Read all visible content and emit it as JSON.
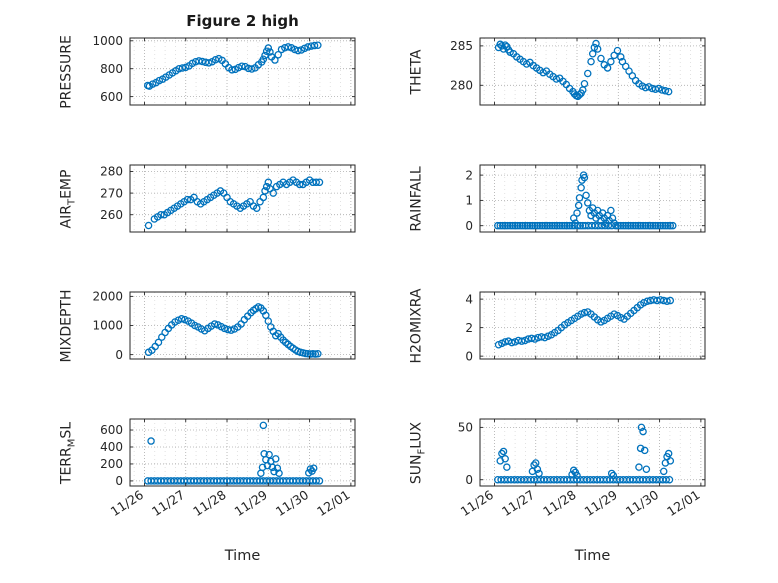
{
  "title": "Figure 2 high",
  "xlabel": "Time",
  "colors": {
    "marker": "#0072BD",
    "axis": "#262626",
    "grid": "#ababab",
    "minor_grid": "#d6d6d6",
    "background": "#ffffff"
  },
  "time_axis": {
    "xlim": [
      -0.35,
      5.1
    ],
    "xticks": [
      0,
      1,
      2,
      3,
      4,
      5
    ],
    "xtick_labels": [
      "11/26",
      "11/27",
      "11/28",
      "11/29",
      "11/30",
      "12/01"
    ]
  },
  "chart_data": [
    {
      "type": "scatter",
      "name": "PRESSURE",
      "ylabel": {
        "pre": "PRESSURE",
        "sub": "",
        "post": ""
      },
      "yticks": [
        600,
        800,
        1000
      ],
      "ylim": [
        540,
        1020
      ],
      "show_x_labels": false,
      "x": [
        0.08,
        0.12,
        0.2,
        0.28,
        0.36,
        0.44,
        0.52,
        0.6,
        0.68,
        0.76,
        0.84,
        0.92,
        1.0,
        1.08,
        1.16,
        1.24,
        1.32,
        1.4,
        1.48,
        1.56,
        1.64,
        1.72,
        1.8,
        1.88,
        1.96,
        2.04,
        2.12,
        2.2,
        2.28,
        2.36,
        2.44,
        2.52,
        2.6,
        2.68,
        2.76,
        2.84,
        2.88,
        2.92,
        2.96,
        3.0,
        3.04,
        3.08,
        3.16,
        3.24,
        3.32,
        3.4,
        3.48,
        3.56,
        3.64,
        3.72,
        3.8,
        3.88,
        3.96,
        4.04,
        4.12,
        4.2
      ],
      "y": [
        680,
        675,
        690,
        700,
        715,
        725,
        740,
        755,
        770,
        785,
        800,
        805,
        810,
        820,
        838,
        850,
        856,
        852,
        846,
        842,
        850,
        864,
        872,
        860,
        835,
        808,
        792,
        795,
        808,
        818,
        815,
        802,
        798,
        806,
        828,
        848,
        868,
        895,
        925,
        948,
        920,
        885,
        862,
        900,
        938,
        950,
        956,
        950,
        938,
        930,
        934,
        946,
        956,
        962,
        966,
        968
      ]
    },
    {
      "type": "scatter",
      "name": "THETA",
      "ylabel": {
        "pre": "THETA",
        "sub": "",
        "post": ""
      },
      "yticks": [
        280,
        285
      ],
      "ylim": [
        277.5,
        286
      ],
      "show_x_labels": false,
      "x": [
        0.1,
        0.14,
        0.18,
        0.22,
        0.26,
        0.3,
        0.34,
        0.38,
        0.46,
        0.54,
        0.62,
        0.7,
        0.78,
        0.86,
        0.94,
        1.02,
        1.1,
        1.18,
        1.26,
        1.34,
        1.42,
        1.5,
        1.58,
        1.66,
        1.74,
        1.82,
        1.9,
        1.94,
        1.98,
        2.02,
        2.06,
        2.1,
        2.14,
        2.18,
        2.26,
        2.34,
        2.38,
        2.42,
        2.46,
        2.5,
        2.58,
        2.66,
        2.74,
        2.82,
        2.9,
        2.98,
        3.06,
        3.1,
        3.18,
        3.26,
        3.34,
        3.42,
        3.5,
        3.58,
        3.66,
        3.74,
        3.82,
        3.9,
        3.98,
        4.06,
        4.14,
        4.22
      ],
      "y": [
        284.8,
        285.2,
        285.0,
        284.6,
        285.1,
        284.9,
        284.5,
        284.2,
        284.0,
        283.6,
        283.3,
        283.0,
        282.7,
        282.9,
        282.5,
        282.2,
        281.9,
        281.6,
        281.8,
        281.4,
        281.1,
        280.8,
        280.9,
        280.5,
        280.1,
        279.6,
        279.2,
        278.9,
        278.7,
        278.6,
        278.8,
        279.0,
        279.4,
        280.2,
        281.5,
        283.0,
        284.0,
        284.8,
        285.3,
        284.6,
        283.4,
        282.6,
        282.2,
        283.0,
        283.8,
        284.4,
        283.6,
        283.0,
        282.4,
        281.8,
        281.2,
        280.6,
        280.2,
        279.9,
        279.7,
        279.8,
        279.6,
        279.5,
        279.6,
        279.4,
        279.3,
        279.2
      ]
    },
    {
      "type": "scatter",
      "name": "AIR_TEMP",
      "ylabel": {
        "pre": "AIR",
        "sub": "T",
        "post": "EMP"
      },
      "yticks": [
        260,
        270,
        280
      ],
      "ylim": [
        252,
        283
      ],
      "show_x_labels": false,
      "x": [
        0.1,
        0.24,
        0.32,
        0.4,
        0.48,
        0.56,
        0.64,
        0.72,
        0.8,
        0.88,
        0.96,
        1.04,
        1.12,
        1.2,
        1.28,
        1.36,
        1.44,
        1.52,
        1.6,
        1.68,
        1.76,
        1.84,
        1.92,
        2.0,
        2.08,
        2.16,
        2.24,
        2.32,
        2.4,
        2.48,
        2.56,
        2.64,
        2.72,
        2.8,
        2.88,
        2.92,
        2.96,
        3.0,
        3.04,
        3.12,
        3.2,
        3.28,
        3.36,
        3.44,
        3.52,
        3.6,
        3.68,
        3.76,
        3.84,
        3.92,
        4.0,
        4.08,
        4.16,
        4.24
      ],
      "y": [
        255,
        258,
        259,
        260,
        260,
        261,
        262,
        263,
        264,
        265,
        266,
        267,
        267,
        268,
        266,
        265,
        266,
        267,
        268,
        269,
        270,
        271,
        270,
        268,
        266,
        265,
        264,
        263,
        264,
        265,
        266,
        264,
        263,
        266,
        268,
        271,
        273,
        275,
        272,
        270,
        273,
        274,
        275,
        274,
        275,
        276,
        275,
        274,
        274,
        275,
        276,
        275,
        275,
        275
      ]
    },
    {
      "type": "scatter",
      "name": "RAINFALL",
      "ylabel": {
        "pre": "RAINFALL",
        "sub": "",
        "post": ""
      },
      "yticks": [
        0,
        1,
        2
      ],
      "ylim": [
        -0.25,
        2.4
      ],
      "show_x_labels": false,
      "x": [
        0.08,
        0.14,
        0.2,
        0.26,
        0.32,
        0.38,
        0.44,
        0.5,
        0.56,
        0.62,
        0.68,
        0.74,
        0.8,
        0.86,
        0.92,
        0.98,
        1.04,
        1.1,
        1.16,
        1.22,
        1.28,
        1.34,
        1.4,
        1.46,
        1.52,
        1.58,
        1.64,
        1.7,
        1.76,
        1.82,
        1.88,
        1.92,
        1.96,
        2.0,
        2.04,
        2.06,
        2.1,
        2.12,
        2.16,
        2.18,
        2.22,
        2.26,
        2.3,
        2.34,
        2.38,
        2.42,
        2.46,
        2.5,
        2.54,
        2.58,
        2.62,
        2.66,
        2.7,
        2.74,
        2.78,
        2.82,
        2.86,
        2.9,
        2.94,
        3.0,
        3.06,
        3.12,
        3.18,
        3.24,
        3.3,
        3.36,
        3.42,
        3.48,
        3.54,
        3.6,
        3.66,
        3.72,
        3.78,
        3.84,
        3.9,
        3.96,
        4.02,
        4.08,
        4.14,
        4.2,
        4.26,
        4.32,
        1.94,
        2.02,
        2.08,
        2.14,
        2.2,
        2.28,
        2.36,
        2.44,
        2.52,
        2.6,
        2.68,
        2.76,
        2.84
      ],
      "y": [
        0,
        0,
        0,
        0,
        0,
        0,
        0,
        0,
        0,
        0,
        0,
        0,
        0,
        0,
        0,
        0,
        0,
        0,
        0,
        0,
        0,
        0,
        0,
        0,
        0,
        0,
        0,
        0,
        0,
        0,
        0,
        0.3,
        0.1,
        0.5,
        0.8,
        1.1,
        1.5,
        1.8,
        2.0,
        1.9,
        1.2,
        0.9,
        0.6,
        0.4,
        0.7,
        0.5,
        0.3,
        0.6,
        0.4,
        0.2,
        0.5,
        0.3,
        0.1,
        0.4,
        0.2,
        0.6,
        0.3,
        0.1,
        0,
        0,
        0,
        0,
        0,
        0,
        0,
        0,
        0,
        0,
        0,
        0,
        0,
        0,
        0,
        0,
        0,
        0,
        0,
        0,
        0,
        0,
        0,
        0,
        0,
        0,
        0,
        0,
        0,
        0,
        0,
        0,
        0,
        0,
        0,
        0,
        0
      ]
    },
    {
      "type": "scatter",
      "name": "MIXDEPTH",
      "ylabel": {
        "pre": "MIXDEPTH",
        "sub": "",
        "post": ""
      },
      "yticks": [
        0,
        1000,
        2000
      ],
      "ylim": [
        -150,
        2150
      ],
      "show_x_labels": false,
      "x": [
        0.1,
        0.18,
        0.26,
        0.34,
        0.42,
        0.5,
        0.58,
        0.66,
        0.74,
        0.82,
        0.9,
        0.98,
        1.06,
        1.14,
        1.22,
        1.3,
        1.38,
        1.46,
        1.54,
        1.62,
        1.7,
        1.78,
        1.86,
        1.94,
        2.02,
        2.1,
        2.18,
        2.26,
        2.34,
        2.42,
        2.5,
        2.58,
        2.64,
        2.7,
        2.76,
        2.82,
        2.88,
        2.94,
        3.0,
        3.06,
        3.12,
        3.18,
        3.24,
        3.3,
        3.36,
        3.42,
        3.48,
        3.54,
        3.6,
        3.66,
        3.72,
        3.78,
        3.84,
        3.9,
        3.96,
        4.02,
        4.08,
        4.14,
        4.2
      ],
      "y": [
        80,
        150,
        280,
        420,
        600,
        760,
        900,
        1020,
        1120,
        1180,
        1230,
        1200,
        1150,
        1080,
        1000,
        950,
        880,
        820,
        900,
        980,
        1050,
        1020,
        960,
        900,
        860,
        840,
        880,
        950,
        1050,
        1200,
        1320,
        1440,
        1520,
        1580,
        1640,
        1600,
        1500,
        1350,
        1150,
        950,
        800,
        650,
        720,
        600,
        500,
        420,
        350,
        280,
        220,
        160,
        110,
        80,
        60,
        40,
        30,
        20,
        30,
        20,
        30
      ]
    },
    {
      "type": "scatter",
      "name": "H2OMIXRA",
      "ylabel": {
        "pre": "H2OMIXRA",
        "sub": "",
        "post": ""
      },
      "yticks": [
        0,
        2,
        4
      ],
      "ylim": [
        -0.2,
        4.5
      ],
      "show_x_labels": false,
      "x": [
        0.1,
        0.18,
        0.26,
        0.34,
        0.42,
        0.5,
        0.58,
        0.66,
        0.74,
        0.82,
        0.9,
        0.98,
        1.06,
        1.14,
        1.22,
        1.3,
        1.38,
        1.46,
        1.54,
        1.62,
        1.7,
        1.78,
        1.86,
        1.94,
        2.02,
        2.1,
        2.18,
        2.26,
        2.34,
        2.42,
        2.5,
        2.58,
        2.66,
        2.74,
        2.82,
        2.9,
        2.98,
        3.06,
        3.14,
        3.22,
        3.3,
        3.38,
        3.46,
        3.54,
        3.62,
        3.7,
        3.78,
        3.86,
        3.94,
        4.02,
        4.1,
        4.18,
        4.26
      ],
      "y": [
        0.8,
        0.9,
        1.0,
        1.05,
        0.95,
        1.0,
        1.1,
        1.05,
        1.1,
        1.2,
        1.25,
        1.2,
        1.3,
        1.35,
        1.3,
        1.4,
        1.5,
        1.65,
        1.8,
        2.0,
        2.2,
        2.35,
        2.5,
        2.65,
        2.8,
        2.95,
        3.05,
        3.1,
        2.95,
        2.75,
        2.55,
        2.4,
        2.5,
        2.65,
        2.8,
        2.95,
        2.85,
        2.7,
        2.6,
        2.8,
        3.0,
        3.2,
        3.4,
        3.6,
        3.75,
        3.85,
        3.9,
        3.95,
        3.9,
        3.95,
        3.9,
        3.85,
        3.9
      ]
    },
    {
      "type": "scatter",
      "name": "TERR_MSL",
      "ylabel": {
        "pre": "TERR",
        "sub": "M",
        "post": "SL"
      },
      "yticks": [
        0,
        200,
        400,
        600
      ],
      "ylim": [
        -60,
        730
      ],
      "show_x_labels": true,
      "x": [
        0.08,
        0.16,
        0.24,
        0.32,
        0.4,
        0.48,
        0.56,
        0.64,
        0.72,
        0.8,
        0.88,
        0.96,
        1.04,
        1.12,
        1.2,
        1.28,
        1.36,
        1.44,
        1.52,
        1.6,
        1.68,
        1.76,
        1.84,
        1.92,
        2.0,
        2.08,
        2.16,
        2.24,
        2.32,
        2.4,
        2.48,
        2.56,
        2.64,
        2.72,
        2.8,
        2.88,
        2.96,
        3.04,
        3.12,
        3.2,
        3.28,
        3.36,
        3.44,
        3.52,
        3.6,
        3.68,
        3.76,
        3.84,
        3.92,
        4.0,
        4.08,
        4.16,
        4.24,
        0.16,
        2.82,
        2.86,
        2.88,
        2.9,
        2.94,
        2.98,
        3.02,
        3.06,
        3.1,
        3.14,
        3.18,
        3.22,
        3.26,
        3.98,
        4.02,
        4.06,
        4.1
      ],
      "y": [
        0,
        0,
        0,
        0,
        0,
        0,
        0,
        0,
        0,
        0,
        0,
        0,
        0,
        0,
        0,
        0,
        0,
        0,
        0,
        0,
        0,
        0,
        0,
        0,
        0,
        0,
        0,
        0,
        0,
        0,
        0,
        0,
        0,
        0,
        0,
        0,
        0,
        0,
        0,
        0,
        0,
        0,
        0,
        0,
        0,
        0,
        0,
        0,
        0,
        0,
        0,
        0,
        0,
        470,
        90,
        160,
        655,
        320,
        250,
        180,
        310,
        230,
        160,
        110,
        260,
        150,
        90,
        95,
        140,
        115,
        150
      ]
    },
    {
      "type": "scatter",
      "name": "SUN_FLUX",
      "ylabel": {
        "pre": "SUN",
        "sub": "F",
        "post": "LUX"
      },
      "yticks": [
        0,
        50
      ],
      "ylim": [
        -6,
        58
      ],
      "show_x_labels": true,
      "x": [
        0.08,
        0.16,
        0.24,
        0.32,
        0.4,
        0.48,
        0.56,
        0.64,
        0.72,
        0.8,
        0.88,
        0.96,
        1.04,
        1.12,
        1.2,
        1.28,
        1.36,
        1.44,
        1.52,
        1.6,
        1.68,
        1.76,
        1.84,
        1.92,
        2.0,
        2.08,
        2.16,
        2.24,
        2.32,
        2.4,
        2.48,
        2.56,
        2.64,
        2.72,
        2.8,
        2.88,
        2.96,
        3.04,
        3.12,
        3.2,
        3.28,
        3.36,
        3.44,
        3.52,
        3.6,
        3.68,
        3.76,
        3.84,
        3.92,
        4.0,
        4.08,
        4.16,
        4.24,
        0.14,
        0.18,
        0.22,
        0.26,
        0.3,
        0.92,
        0.96,
        1.0,
        1.04,
        1.08,
        1.88,
        1.92,
        1.96,
        2.0,
        2.84,
        2.88,
        3.5,
        3.54,
        3.56,
        3.6,
        3.64,
        3.68,
        4.1,
        4.14,
        4.18,
        4.22,
        4.26
      ],
      "y": [
        0,
        0,
        0,
        0,
        0,
        0,
        0,
        0,
        0,
        0,
        0,
        0,
        0,
        0,
        0,
        0,
        0,
        0,
        0,
        0,
        0,
        0,
        0,
        0,
        0,
        0,
        0,
        0,
        0,
        0,
        0,
        0,
        0,
        0,
        0,
        0,
        0,
        0,
        0,
        0,
        0,
        0,
        0,
        0,
        0,
        0,
        0,
        0,
        0,
        0,
        0,
        0,
        0,
        18,
        25,
        27,
        20,
        12,
        8,
        14,
        16,
        10,
        6,
        5,
        9,
        7,
        4,
        6,
        4,
        12,
        30,
        50,
        46,
        28,
        10,
        8,
        16,
        22,
        25,
        18
      ]
    }
  ]
}
